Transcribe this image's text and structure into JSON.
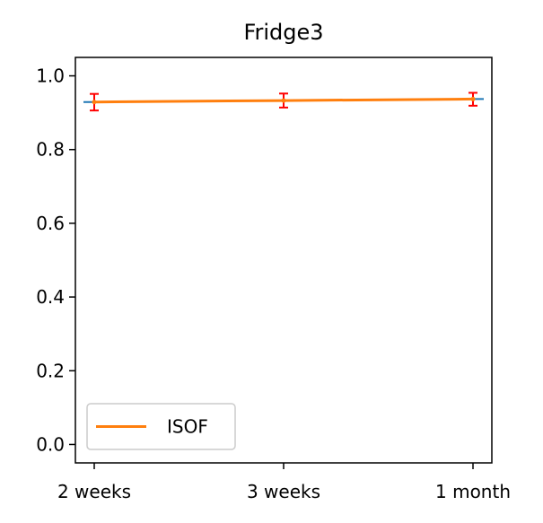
{
  "chart_data": {
    "type": "line",
    "title": "Fridge3",
    "xlabel": "",
    "ylabel": "",
    "categories": [
      "2 weeks",
      "3 weeks",
      "1 month"
    ],
    "ylim": [
      -0.05,
      1.05
    ],
    "yticks": [
      "0.0",
      "0.2",
      "0.4",
      "0.6",
      "0.8",
      "1.0"
    ],
    "grid": false,
    "legend_position": "lower-left",
    "series": [
      {
        "name": "ISOF",
        "color": "#ff7f0e",
        "values": [
          0.929,
          0.933,
          0.937
        ],
        "error_low": [
          0.906,
          0.914,
          0.919
        ],
        "error_high": [
          0.951,
          0.952,
          0.954
        ],
        "error_color": "#ff0000",
        "median_color": "#1f77b4"
      }
    ]
  }
}
